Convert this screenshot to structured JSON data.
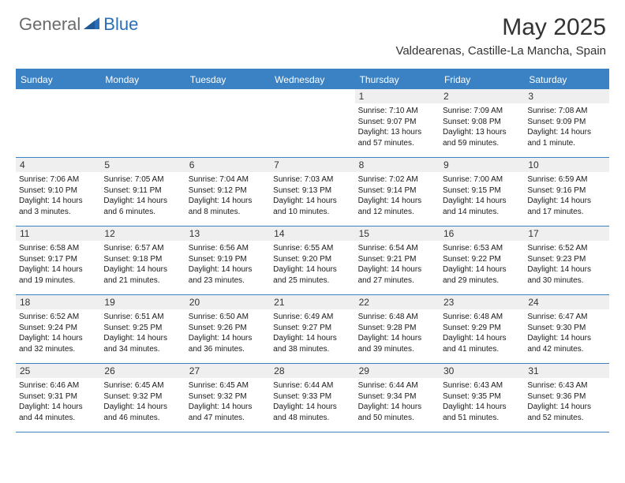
{
  "logo": {
    "general": "General",
    "blue": "Blue"
  },
  "header": {
    "title": "May 2025",
    "location": "Valdearenas, Castille-La Mancha, Spain"
  },
  "colors": {
    "accent": "#3b82c4",
    "header_bg": "#3b82c4",
    "header_text": "#ffffff",
    "daynum_bg": "#efefef",
    "text": "#1a1a1a",
    "rule": "#3b82c4",
    "logo_gray": "#6b6b6b",
    "logo_blue": "#2a6fb5",
    "background": "#ffffff"
  },
  "dayNames": [
    "Sunday",
    "Monday",
    "Tuesday",
    "Wednesday",
    "Thursday",
    "Friday",
    "Saturday"
  ],
  "weeks": [
    [
      {
        "empty": true
      },
      {
        "empty": true
      },
      {
        "empty": true
      },
      {
        "empty": true
      },
      {
        "num": "1",
        "sunrise": "Sunrise: 7:10 AM",
        "sunset": "Sunset: 9:07 PM",
        "daylight": "Daylight: 13 hours and 57 minutes."
      },
      {
        "num": "2",
        "sunrise": "Sunrise: 7:09 AM",
        "sunset": "Sunset: 9:08 PM",
        "daylight": "Daylight: 13 hours and 59 minutes."
      },
      {
        "num": "3",
        "sunrise": "Sunrise: 7:08 AM",
        "sunset": "Sunset: 9:09 PM",
        "daylight": "Daylight: 14 hours and 1 minute."
      }
    ],
    [
      {
        "num": "4",
        "sunrise": "Sunrise: 7:06 AM",
        "sunset": "Sunset: 9:10 PM",
        "daylight": "Daylight: 14 hours and 3 minutes."
      },
      {
        "num": "5",
        "sunrise": "Sunrise: 7:05 AM",
        "sunset": "Sunset: 9:11 PM",
        "daylight": "Daylight: 14 hours and 6 minutes."
      },
      {
        "num": "6",
        "sunrise": "Sunrise: 7:04 AM",
        "sunset": "Sunset: 9:12 PM",
        "daylight": "Daylight: 14 hours and 8 minutes."
      },
      {
        "num": "7",
        "sunrise": "Sunrise: 7:03 AM",
        "sunset": "Sunset: 9:13 PM",
        "daylight": "Daylight: 14 hours and 10 minutes."
      },
      {
        "num": "8",
        "sunrise": "Sunrise: 7:02 AM",
        "sunset": "Sunset: 9:14 PM",
        "daylight": "Daylight: 14 hours and 12 minutes."
      },
      {
        "num": "9",
        "sunrise": "Sunrise: 7:00 AM",
        "sunset": "Sunset: 9:15 PM",
        "daylight": "Daylight: 14 hours and 14 minutes."
      },
      {
        "num": "10",
        "sunrise": "Sunrise: 6:59 AM",
        "sunset": "Sunset: 9:16 PM",
        "daylight": "Daylight: 14 hours and 17 minutes."
      }
    ],
    [
      {
        "num": "11",
        "sunrise": "Sunrise: 6:58 AM",
        "sunset": "Sunset: 9:17 PM",
        "daylight": "Daylight: 14 hours and 19 minutes."
      },
      {
        "num": "12",
        "sunrise": "Sunrise: 6:57 AM",
        "sunset": "Sunset: 9:18 PM",
        "daylight": "Daylight: 14 hours and 21 minutes."
      },
      {
        "num": "13",
        "sunrise": "Sunrise: 6:56 AM",
        "sunset": "Sunset: 9:19 PM",
        "daylight": "Daylight: 14 hours and 23 minutes."
      },
      {
        "num": "14",
        "sunrise": "Sunrise: 6:55 AM",
        "sunset": "Sunset: 9:20 PM",
        "daylight": "Daylight: 14 hours and 25 minutes."
      },
      {
        "num": "15",
        "sunrise": "Sunrise: 6:54 AM",
        "sunset": "Sunset: 9:21 PM",
        "daylight": "Daylight: 14 hours and 27 minutes."
      },
      {
        "num": "16",
        "sunrise": "Sunrise: 6:53 AM",
        "sunset": "Sunset: 9:22 PM",
        "daylight": "Daylight: 14 hours and 29 minutes."
      },
      {
        "num": "17",
        "sunrise": "Sunrise: 6:52 AM",
        "sunset": "Sunset: 9:23 PM",
        "daylight": "Daylight: 14 hours and 30 minutes."
      }
    ],
    [
      {
        "num": "18",
        "sunrise": "Sunrise: 6:52 AM",
        "sunset": "Sunset: 9:24 PM",
        "daylight": "Daylight: 14 hours and 32 minutes."
      },
      {
        "num": "19",
        "sunrise": "Sunrise: 6:51 AM",
        "sunset": "Sunset: 9:25 PM",
        "daylight": "Daylight: 14 hours and 34 minutes."
      },
      {
        "num": "20",
        "sunrise": "Sunrise: 6:50 AM",
        "sunset": "Sunset: 9:26 PM",
        "daylight": "Daylight: 14 hours and 36 minutes."
      },
      {
        "num": "21",
        "sunrise": "Sunrise: 6:49 AM",
        "sunset": "Sunset: 9:27 PM",
        "daylight": "Daylight: 14 hours and 38 minutes."
      },
      {
        "num": "22",
        "sunrise": "Sunrise: 6:48 AM",
        "sunset": "Sunset: 9:28 PM",
        "daylight": "Daylight: 14 hours and 39 minutes."
      },
      {
        "num": "23",
        "sunrise": "Sunrise: 6:48 AM",
        "sunset": "Sunset: 9:29 PM",
        "daylight": "Daylight: 14 hours and 41 minutes."
      },
      {
        "num": "24",
        "sunrise": "Sunrise: 6:47 AM",
        "sunset": "Sunset: 9:30 PM",
        "daylight": "Daylight: 14 hours and 42 minutes."
      }
    ],
    [
      {
        "num": "25",
        "sunrise": "Sunrise: 6:46 AM",
        "sunset": "Sunset: 9:31 PM",
        "daylight": "Daylight: 14 hours and 44 minutes."
      },
      {
        "num": "26",
        "sunrise": "Sunrise: 6:45 AM",
        "sunset": "Sunset: 9:32 PM",
        "daylight": "Daylight: 14 hours and 46 minutes."
      },
      {
        "num": "27",
        "sunrise": "Sunrise: 6:45 AM",
        "sunset": "Sunset: 9:32 PM",
        "daylight": "Daylight: 14 hours and 47 minutes."
      },
      {
        "num": "28",
        "sunrise": "Sunrise: 6:44 AM",
        "sunset": "Sunset: 9:33 PM",
        "daylight": "Daylight: 14 hours and 48 minutes."
      },
      {
        "num": "29",
        "sunrise": "Sunrise: 6:44 AM",
        "sunset": "Sunset: 9:34 PM",
        "daylight": "Daylight: 14 hours and 50 minutes."
      },
      {
        "num": "30",
        "sunrise": "Sunrise: 6:43 AM",
        "sunset": "Sunset: 9:35 PM",
        "daylight": "Daylight: 14 hours and 51 minutes."
      },
      {
        "num": "31",
        "sunrise": "Sunrise: 6:43 AM",
        "sunset": "Sunset: 9:36 PM",
        "daylight": "Daylight: 14 hours and 52 minutes."
      }
    ]
  ]
}
